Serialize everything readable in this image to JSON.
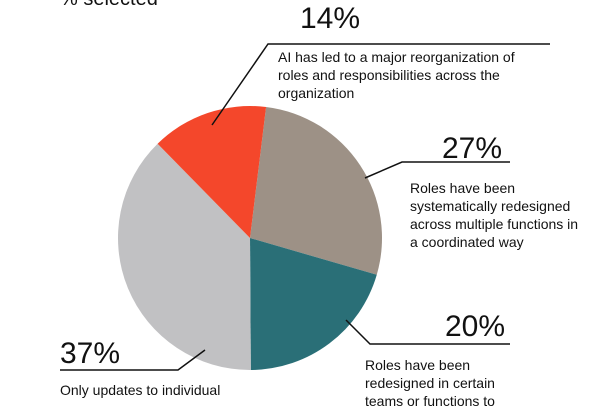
{
  "chart_data": {
    "type": "pie",
    "subtitle": "% selected",
    "categories": [
      "Roles have been systematically redesigned across multiple functions in a coordinated way",
      "Roles have been redesigned in certain teams or functions to",
      "Only updates to individual",
      "AI has led to a major reorganization of roles and responsibilities across the organization"
    ],
    "values": [
      27,
      20,
      37,
      14
    ],
    "value_labels": [
      "27%",
      "20%",
      "37%",
      "14%"
    ],
    "colors": [
      "#9d9186",
      "#2a6f77",
      "#c1c1c3",
      "#f4472b"
    ]
  }
}
